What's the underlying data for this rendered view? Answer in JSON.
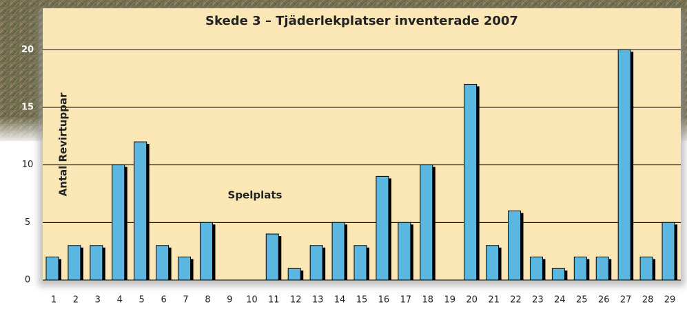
{
  "chart_data": {
    "type": "bar",
    "title": "Skede 3 – Tjäderlekplatser inventerade 2007",
    "y_label": "Antal Revirtuppar",
    "x_label": "Spelplats",
    "categories": [
      "1",
      "2",
      "3",
      "4",
      "5",
      "6",
      "7",
      "8",
      "9",
      "10",
      "11",
      "12",
      "13",
      "14",
      "15",
      "16",
      "17",
      "18",
      "19",
      "20",
      "21",
      "22",
      "23",
      "24",
      "25",
      "26",
      "27",
      "28",
      "29"
    ],
    "values": [
      2,
      3,
      3,
      10,
      12,
      3,
      2,
      5,
      0,
      0,
      4,
      1,
      3,
      5,
      3,
      9,
      5,
      10,
      0,
      17,
      3,
      6,
      2,
      1,
      2,
      2,
      20,
      2,
      5
    ],
    "color": "#5bb7df",
    "ylim": [
      0,
      23.6
    ],
    "yticks": [
      0,
      5,
      10,
      15,
      20
    ],
    "grid": true
  }
}
